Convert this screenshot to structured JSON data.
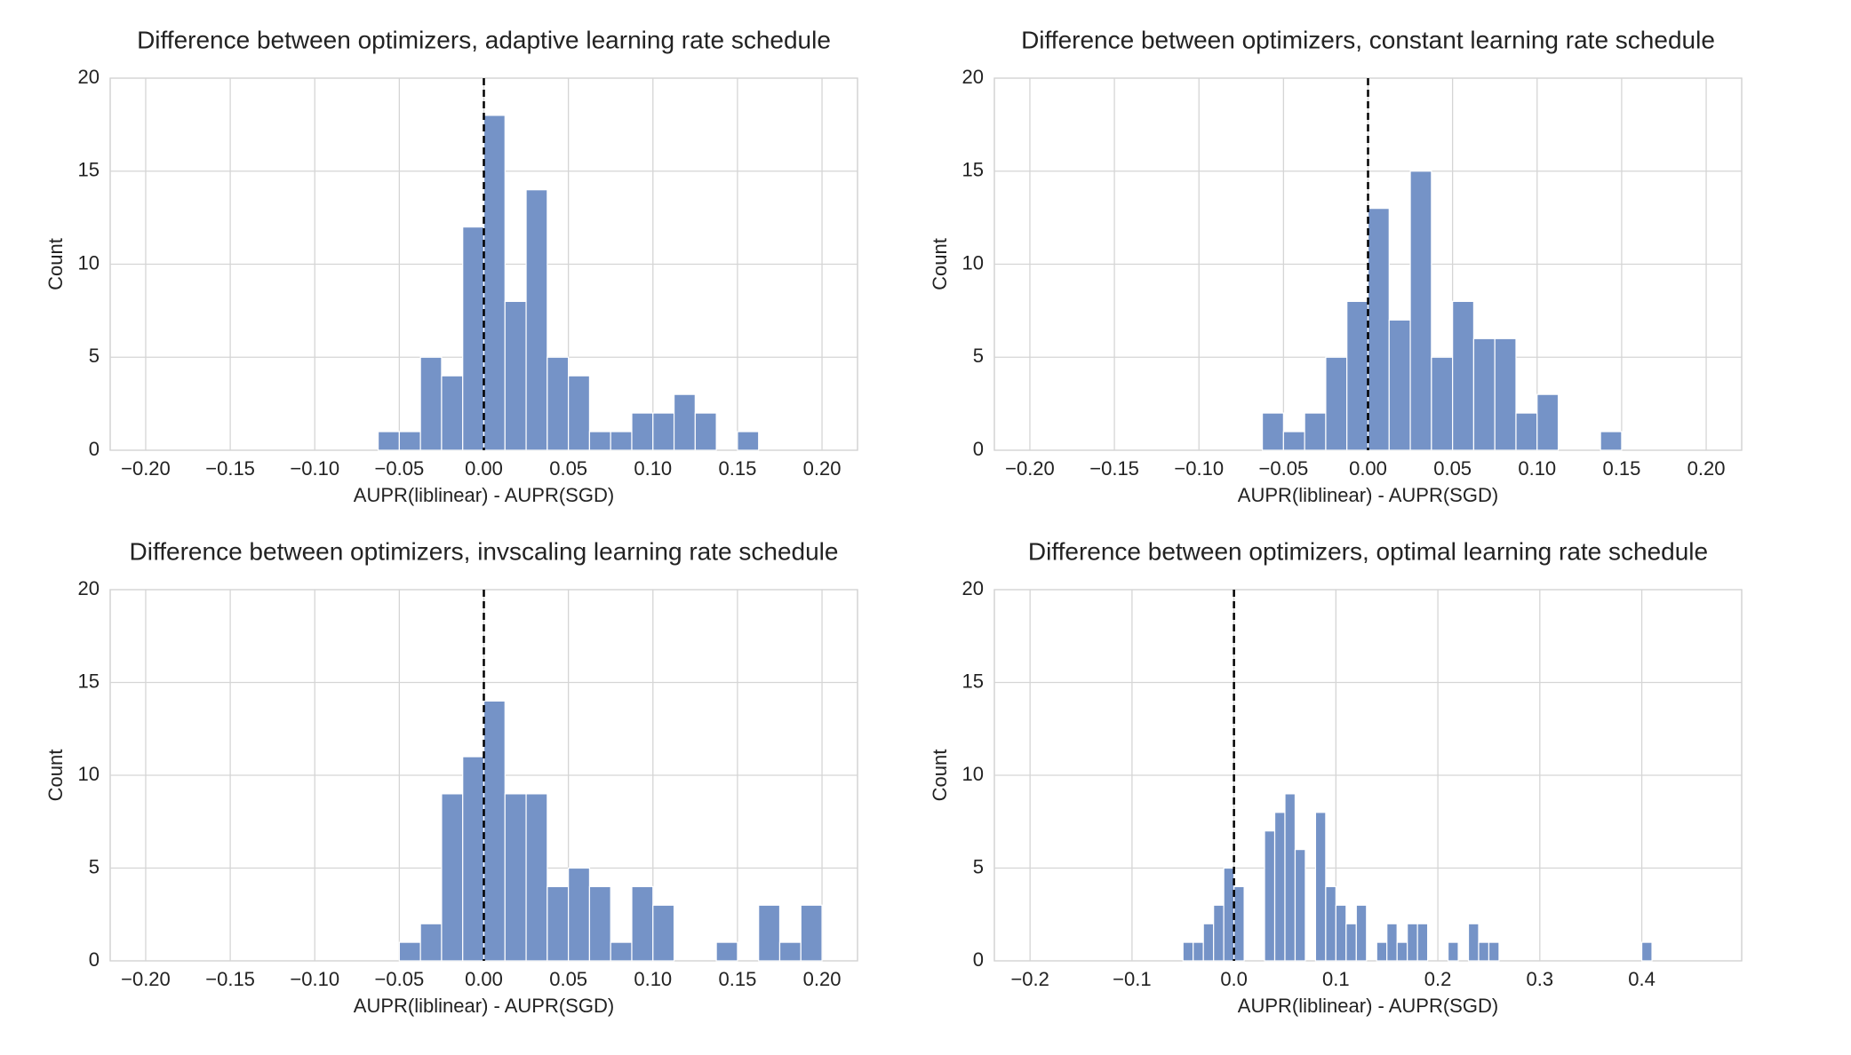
{
  "chart_data": [
    {
      "type": "histogram",
      "title": "Difference between optimizers, adaptive learning rate schedule",
      "xlabel": "AUPR(liblinear) - AUPR(SGD)",
      "ylabel": "Count",
      "color": "#7593c7",
      "grid": true,
      "vline": 0,
      "bins": [
        -0.0625,
        -0.05,
        -0.0375,
        -0.025,
        -0.0125,
        0,
        0.0125,
        0.025,
        0.0375,
        0.05,
        0.0625,
        0.075,
        0.0875,
        0.1,
        0.1125,
        0.125,
        0.1375,
        0.15,
        0.1625
      ],
      "values": [
        1,
        1,
        5,
        4,
        12,
        18,
        8,
        14,
        5,
        4,
        1,
        1,
        2,
        2,
        3,
        2,
        0,
        1
      ],
      "xlim": [
        -0.221,
        0.221
      ],
      "ylim": [
        0,
        20
      ],
      "xticks": [
        {
          "value": -0.2,
          "label": "−0.20"
        },
        {
          "value": -0.15,
          "label": "−0.15"
        },
        {
          "value": -0.1,
          "label": "−0.10"
        },
        {
          "value": -0.05,
          "label": "−0.05"
        },
        {
          "value": 0,
          "label": "0.00"
        },
        0.05,
        {
          "value": 0.1,
          "label": "0.10"
        },
        0.15,
        {
          "value": 0.2,
          "label": "0.20"
        }
      ],
      "yticks": [
        0,
        5,
        10,
        15,
        20
      ]
    },
    {
      "type": "histogram",
      "title": "Difference between optimizers, constant learning rate schedule",
      "xlabel": "AUPR(liblinear) - AUPR(SGD)",
      "ylabel": "Count",
      "color": "#7593c7",
      "grid": true,
      "vline": 0,
      "bins": [
        -0.0625,
        -0.05,
        -0.0375,
        -0.025,
        -0.0125,
        0,
        0.0125,
        0.025,
        0.0375,
        0.05,
        0.0625,
        0.075,
        0.0875,
        0.1,
        0.1125,
        0.125,
        0.1375,
        0.15
      ],
      "values": [
        2,
        1,
        2,
        5,
        8,
        13,
        7,
        15,
        5,
        8,
        6,
        6,
        2,
        3,
        0,
        0,
        1
      ],
      "xlim": [
        -0.221,
        0.221
      ],
      "ylim": [
        0,
        20
      ],
      "xticks": [
        {
          "value": -0.2,
          "label": "−0.20"
        },
        {
          "value": -0.15,
          "label": "−0.15"
        },
        {
          "value": -0.1,
          "label": "−0.10"
        },
        {
          "value": -0.05,
          "label": "−0.05"
        },
        {
          "value": 0,
          "label": "0.00"
        },
        0.05,
        {
          "value": 0.1,
          "label": "0.10"
        },
        0.15,
        {
          "value": 0.2,
          "label": "0.20"
        }
      ],
      "yticks": [
        0,
        5,
        10,
        15,
        20
      ]
    },
    {
      "type": "histogram",
      "title": "Difference between optimizers, invscaling learning rate schedule",
      "xlabel": "AUPR(liblinear) - AUPR(SGD)",
      "ylabel": "Count",
      "color": "#7593c7",
      "grid": true,
      "vline": 0,
      "bins": [
        -0.05,
        -0.0375,
        -0.025,
        -0.0125,
        0,
        0.0125,
        0.025,
        0.0375,
        0.05,
        0.0625,
        0.075,
        0.0875,
        0.1,
        0.1125,
        0.125,
        0.1375,
        0.15,
        0.1625,
        0.175,
        0.1875,
        0.2
      ],
      "values": [
        1,
        2,
        9,
        11,
        14,
        9,
        9,
        4,
        5,
        4,
        1,
        4,
        3,
        0,
        0,
        1,
        0,
        3,
        1,
        3
      ],
      "xlim": [
        -0.221,
        0.221
      ],
      "ylim": [
        0,
        20
      ],
      "xticks": [
        {
          "value": -0.2,
          "label": "−0.20"
        },
        {
          "value": -0.15,
          "label": "−0.15"
        },
        {
          "value": -0.1,
          "label": "−0.10"
        },
        {
          "value": -0.05,
          "label": "−0.05"
        },
        {
          "value": 0,
          "label": "0.00"
        },
        0.05,
        {
          "value": 0.1,
          "label": "0.10"
        },
        0.15,
        {
          "value": 0.2,
          "label": "0.20"
        }
      ],
      "yticks": [
        0,
        5,
        10,
        15,
        20
      ]
    },
    {
      "type": "histogram",
      "title": "Difference between optimizers, optimal learning rate schedule",
      "xlabel": "AUPR(liblinear) - AUPR(SGD)",
      "ylabel": "Count",
      "color": "#7593c7",
      "grid": true,
      "vline": 0,
      "bins": [
        -0.05,
        -0.04,
        -0.03,
        -0.02,
        -0.01,
        0,
        0.01,
        0.02,
        0.03,
        0.04,
        0.05,
        0.06,
        0.07,
        0.08,
        0.09,
        0.1,
        0.11,
        0.12,
        0.13,
        0.14,
        0.15,
        0.16,
        0.17,
        0.18,
        0.19,
        0.2,
        0.21,
        0.22,
        0.23,
        0.24,
        0.25,
        0.26,
        0.27,
        0.28,
        0.29,
        0.3,
        0.31,
        0.32,
        0.33,
        0.34,
        0.35,
        0.36,
        0.37,
        0.38,
        0.39,
        0.4,
        0.41
      ],
      "values": [
        1,
        1,
        2,
        3,
        5,
        4,
        0,
        0,
        7,
        8,
        9,
        6,
        0,
        8,
        4,
        3,
        2,
        3,
        0,
        1,
        2,
        1,
        2,
        2,
        0,
        0,
        1,
        0,
        2,
        1,
        1,
        0,
        0,
        0,
        0,
        0,
        0,
        0,
        0,
        0,
        0,
        0,
        0,
        0,
        0,
        1
      ],
      "xlim": [
        -0.235,
        0.498
      ],
      "ylim": [
        0,
        20
      ],
      "xticks": [
        {
          "value": -0.2,
          "label": "−0.2"
        },
        {
          "value": -0.1,
          "label": "−0.1"
        },
        {
          "value": 0,
          "label": "0.0"
        },
        0.1,
        0.2,
        0.3,
        0.4
      ],
      "yticks": [
        0,
        5,
        10,
        15,
        20
      ]
    }
  ]
}
